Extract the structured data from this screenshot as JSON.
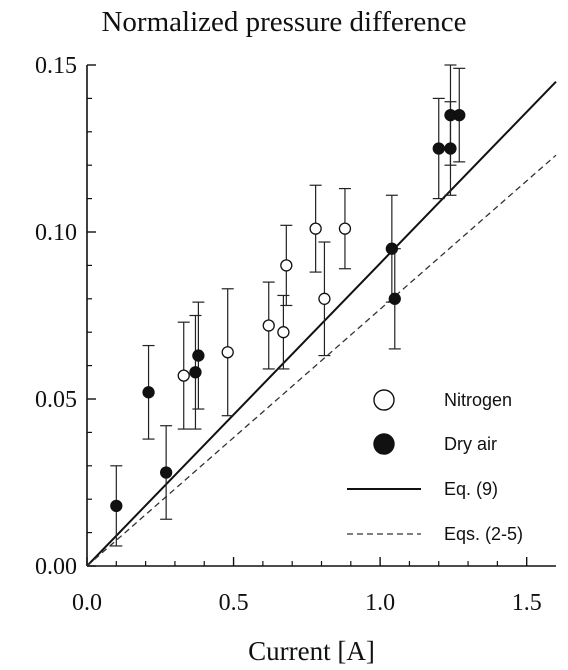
{
  "chart_data": {
    "type": "scatter",
    "title": "Normalized pressure difference",
    "xlabel": "Current [A]",
    "ylabel": "",
    "xlim": [
      0,
      1.6
    ],
    "ylim": [
      0,
      0.15
    ],
    "x_ticks": [
      "0.0",
      "0.5",
      "1.0",
      "1.5"
    ],
    "x_tick_values": [
      0,
      0.5,
      1.0,
      1.5
    ],
    "y_ticks": [
      "0.00",
      "0.05",
      "0.10",
      "0.15"
    ],
    "y_tick_values": [
      0,
      0.05,
      0.1,
      0.15
    ],
    "grid": false,
    "legend_position": "bottom-right",
    "series": [
      {
        "name": "Nitrogen",
        "kind": "scatter",
        "marker": "open-circle",
        "color": "#111111",
        "points": [
          {
            "x": 0.33,
            "y": 0.057,
            "err": 0.016
          },
          {
            "x": 0.48,
            "y": 0.064,
            "err": 0.019
          },
          {
            "x": 0.62,
            "y": 0.072,
            "err": 0.013
          },
          {
            "x": 0.67,
            "y": 0.07,
            "err": 0.011
          },
          {
            "x": 0.68,
            "y": 0.09,
            "err": 0.012
          },
          {
            "x": 0.78,
            "y": 0.101,
            "err": 0.013
          },
          {
            "x": 0.81,
            "y": 0.08,
            "err": 0.017
          },
          {
            "x": 0.88,
            "y": 0.101,
            "err": 0.012
          }
        ]
      },
      {
        "name": "Dry air",
        "kind": "scatter",
        "marker": "filled-circle",
        "color": "#111111",
        "points": [
          {
            "x": 0.1,
            "y": 0.018,
            "err": 0.012
          },
          {
            "x": 0.21,
            "y": 0.052,
            "err": 0.014
          },
          {
            "x": 0.27,
            "y": 0.028,
            "err": 0.014
          },
          {
            "x": 0.37,
            "y": 0.058,
            "err": 0.017
          },
          {
            "x": 0.38,
            "y": 0.063,
            "err": 0.016
          },
          {
            "x": 1.04,
            "y": 0.095,
            "err": 0.016
          },
          {
            "x": 1.05,
            "y": 0.08,
            "err": 0.015
          },
          {
            "x": 1.2,
            "y": 0.125,
            "err": 0.015
          },
          {
            "x": 1.24,
            "y": 0.125,
            "err": 0.014
          },
          {
            "x": 1.24,
            "y": 0.135,
            "err": 0.015
          },
          {
            "x": 1.27,
            "y": 0.135,
            "err": 0.014
          }
        ]
      },
      {
        "name": "Eq. (9)",
        "kind": "line",
        "style": "solid",
        "color": "#111111",
        "points": [
          {
            "x": 0,
            "y": 0
          },
          {
            "x": 1.6,
            "y": 0.145
          }
        ]
      },
      {
        "name": "Eqs. (2-5)",
        "kind": "line",
        "style": "dashed",
        "color": "#333333",
        "points": [
          {
            "x": 0,
            "y": 0
          },
          {
            "x": 1.6,
            "y": 0.123
          }
        ]
      }
    ]
  }
}
